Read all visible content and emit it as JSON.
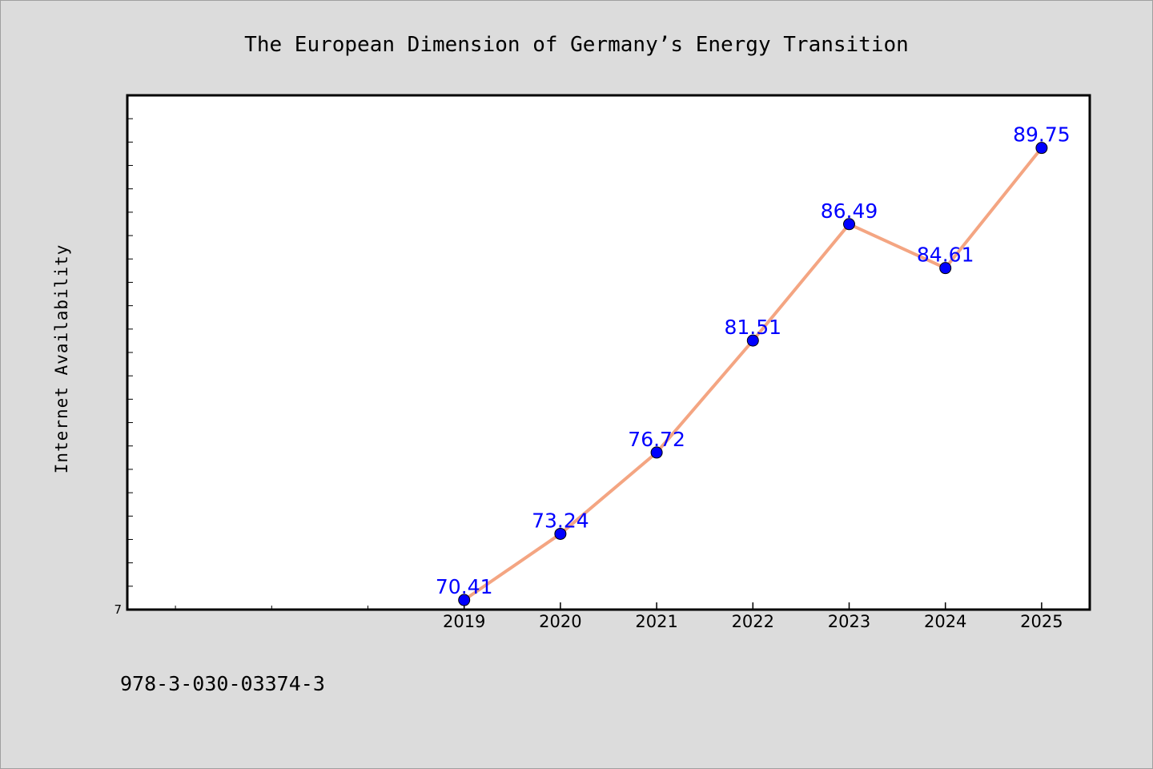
{
  "chart_data": {
    "type": "line",
    "title": "The European Dimension of Germany’s Energy Transition",
    "xlabel": "",
    "ylabel": "Internet Availability",
    "x": [
      "2019",
      "2020",
      "2021",
      "2022",
      "2023",
      "2024",
      "2025"
    ],
    "series": [
      {
        "values": [
          70.41,
          73.24,
          76.72,
          81.51,
          86.49,
          84.61,
          89.75
        ],
        "labels": [
          "70.41",
          "73.24",
          "76.72",
          "81.51",
          "86.49",
          "84.61",
          "89.75"
        ]
      }
    ],
    "xlim": [
      2015.5,
      2025.5
    ],
    "ylim": [
      70,
      92
    ],
    "y_tick_labels": [
      "7"
    ],
    "grid": false,
    "legend": "none",
    "colors": {
      "line": "#f4a582",
      "marker": "#0000ff",
      "label": "#0000ff",
      "plot_bg": "#ffffff",
      "page_bg": "#dcdcdc"
    }
  },
  "footer": {
    "isbn": "978-3-030-03374-3"
  }
}
